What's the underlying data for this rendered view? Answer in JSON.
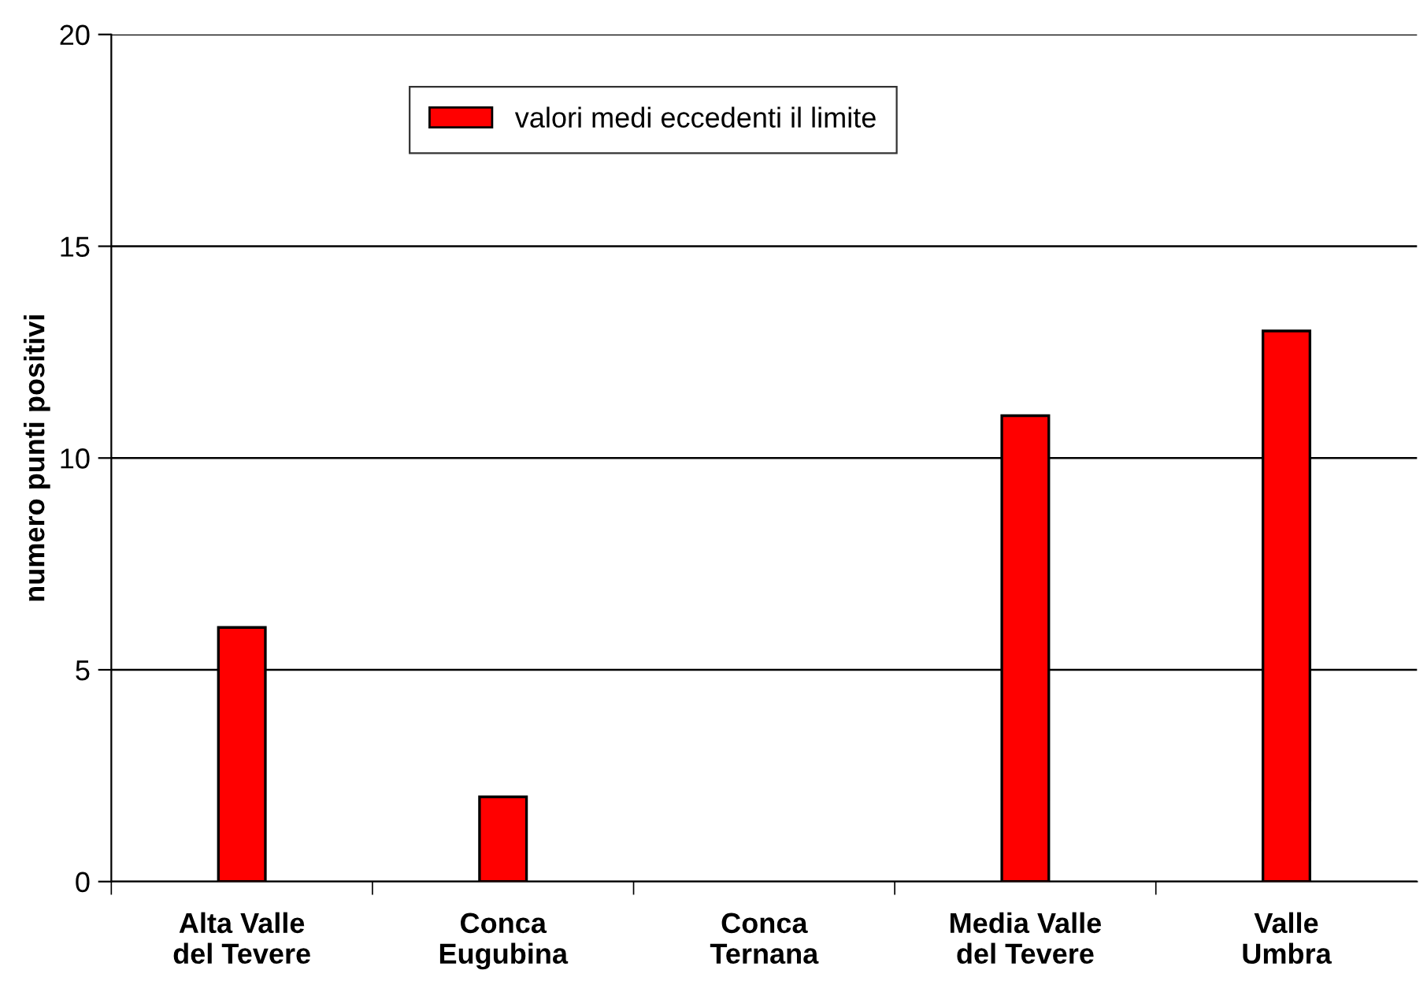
{
  "chart_data": {
    "type": "bar",
    "ylabel": "numero punti positivi",
    "categories": [
      "Alta Valle\ndel Tevere",
      "Conca\nEugubina",
      "Conca\nTernana",
      "Media Valle\ndel Tevere",
      "Valle\nUmbra"
    ],
    "series": [
      {
        "name": "valori medi eccedenti il limite",
        "color": "#ff0000",
        "values": [
          6,
          2,
          0,
          11,
          13
        ]
      }
    ],
    "ylim": [
      0,
      20
    ],
    "yticks": [
      0,
      5,
      10,
      15,
      20
    ],
    "grid": "y",
    "legend": "top"
  }
}
